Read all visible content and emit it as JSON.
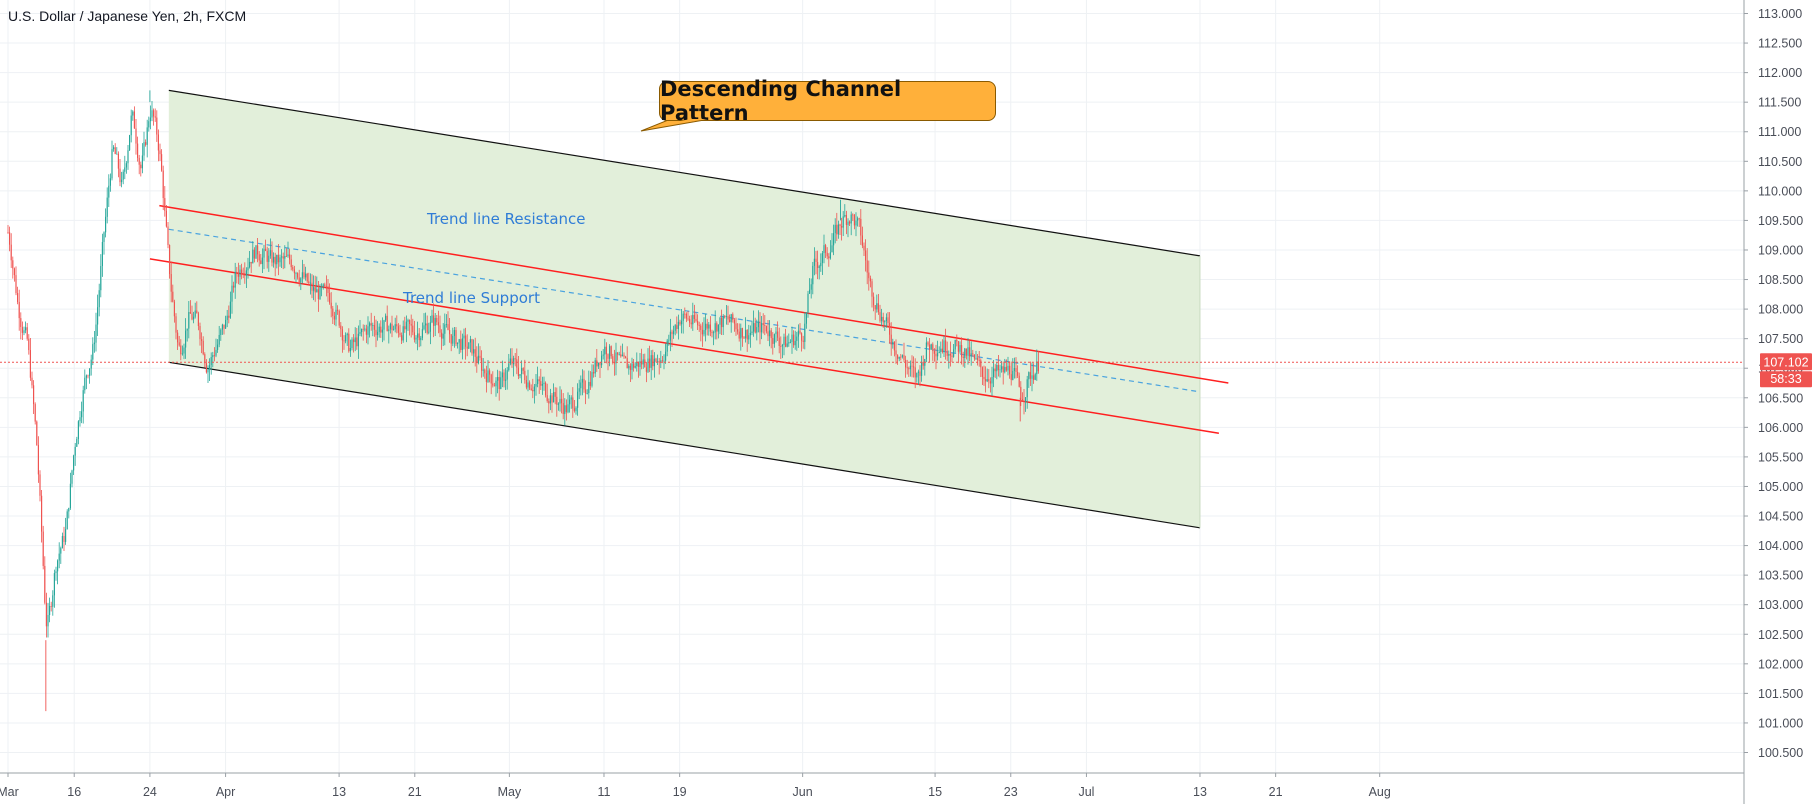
{
  "title": "U.S. Dollar / Japanese Yen, 2h, FXCM",
  "colors": {
    "up_candle": "#26a69a",
    "down_candle": "#ef5350",
    "channel_fill": "#e0eed8",
    "channel_edge": "#111111",
    "red_line": "#ff1f1f",
    "midline": "#4aa3df",
    "price_line": "#ef5350",
    "grid": "#eef1f4",
    "axis_text": "#4a4e58",
    "callout_bg": "#ffb03a"
  },
  "annotations": {
    "callout": "Descending Channel Pattern",
    "resistance": "Trend line Resistance",
    "support": "Trend line Support"
  },
  "price_label": {
    "price": "107.102",
    "countdown": "58:33"
  },
  "chart_data": {
    "type": "candlestick",
    "y_axis_side": "right",
    "ylim": [
      100.2,
      113.1
    ],
    "y_ticks": [
      "113.000",
      "112.500",
      "112.000",
      "111.500",
      "111.000",
      "110.500",
      "110.000",
      "109.500",
      "109.000",
      "108.500",
      "108.000",
      "107.500",
      "107.000",
      "106.500",
      "106.000",
      "105.500",
      "105.000",
      "104.500",
      "104.000",
      "103.500",
      "103.000",
      "102.500",
      "102.000",
      "101.500",
      "101.000",
      "100.500"
    ],
    "x_ticks": [
      {
        "label": "Mar",
        "date": "2020-03-09"
      },
      {
        "label": "16",
        "date": "2020-03-16"
      },
      {
        "label": "24",
        "date": "2020-03-24"
      },
      {
        "label": "Apr",
        "date": "2020-04-01"
      },
      {
        "label": "13",
        "date": "2020-04-13"
      },
      {
        "label": "21",
        "date": "2020-04-21"
      },
      {
        "label": "May",
        "date": "2020-05-01"
      },
      {
        "label": "11",
        "date": "2020-05-11"
      },
      {
        "label": "19",
        "date": "2020-05-19"
      },
      {
        "label": "Jun",
        "date": "2020-06-01"
      },
      {
        "label": "15",
        "date": "2020-06-15"
      },
      {
        "label": "23",
        "date": "2020-06-23"
      },
      {
        "label": "Jul",
        "date": "2020-07-01"
      },
      {
        "label": "13",
        "date": "2020-07-13"
      },
      {
        "label": "21",
        "date": "2020-07-21"
      },
      {
        "label": "Aug",
        "date": "2020-08-01"
      }
    ],
    "last_price": 107.102,
    "price_path": [
      {
        "date": "2020-03-09",
        "price": 109.3
      },
      {
        "date": "2020-03-10",
        "price": 108.0
      },
      {
        "date": "2020-03-11",
        "price": 107.4
      },
      {
        "date": "2020-03-12",
        "price": 105.6
      },
      {
        "date": "2020-03-13",
        "price": 102.4
      },
      {
        "date": "2020-03-14",
        "price": 103.8
      },
      {
        "date": "2020-03-15",
        "price": 104.2
      },
      {
        "date": "2020-03-16",
        "price": 105.8
      },
      {
        "date": "2020-03-17",
        "price": 106.8
      },
      {
        "date": "2020-03-18",
        "price": 107.4
      },
      {
        "date": "2020-03-19",
        "price": 109.2
      },
      {
        "date": "2020-03-20",
        "price": 110.8
      },
      {
        "date": "2020-03-21",
        "price": 110.0
      },
      {
        "date": "2020-03-22",
        "price": 111.4
      },
      {
        "date": "2020-03-23",
        "price": 110.3
      },
      {
        "date": "2020-03-24",
        "price": 111.5
      },
      {
        "date": "2020-03-25",
        "price": 110.6
      },
      {
        "date": "2020-03-26",
        "price": 108.5
      },
      {
        "date": "2020-03-27",
        "price": 107.2
      },
      {
        "date": "2020-03-28",
        "price": 107.9
      },
      {
        "date": "2020-03-29",
        "price": 107.8
      },
      {
        "date": "2020-03-30",
        "price": 107.0
      },
      {
        "date": "2020-04-01",
        "price": 107.8
      },
      {
        "date": "2020-04-02",
        "price": 108.6
      },
      {
        "date": "2020-04-04",
        "price": 109.0
      },
      {
        "date": "2020-04-06",
        "price": 108.8
      },
      {
        "date": "2020-04-08",
        "price": 108.8
      },
      {
        "date": "2020-04-10",
        "price": 108.3
      },
      {
        "date": "2020-04-12",
        "price": 108.2
      },
      {
        "date": "2020-04-14",
        "price": 107.3
      },
      {
        "date": "2020-04-16",
        "price": 107.7
      },
      {
        "date": "2020-04-18",
        "price": 107.7
      },
      {
        "date": "2020-04-21",
        "price": 107.6
      },
      {
        "date": "2020-04-23",
        "price": 107.8
      },
      {
        "date": "2020-04-25",
        "price": 107.5
      },
      {
        "date": "2020-04-27",
        "price": 107.3
      },
      {
        "date": "2020-04-28",
        "price": 107.0
      },
      {
        "date": "2020-04-30",
        "price": 106.7
      },
      {
        "date": "2020-05-01",
        "price": 107.1
      },
      {
        "date": "2020-05-03",
        "price": 106.8
      },
      {
        "date": "2020-05-05",
        "price": 106.6
      },
      {
        "date": "2020-05-07",
        "price": 106.3
      },
      {
        "date": "2020-05-09",
        "price": 106.7
      },
      {
        "date": "2020-05-11",
        "price": 107.4
      },
      {
        "date": "2020-05-13",
        "price": 107.0
      },
      {
        "date": "2020-05-15",
        "price": 107.1
      },
      {
        "date": "2020-05-17",
        "price": 107.2
      },
      {
        "date": "2020-05-19",
        "price": 107.9
      },
      {
        "date": "2020-05-21",
        "price": 107.7
      },
      {
        "date": "2020-05-24",
        "price": 107.8
      },
      {
        "date": "2020-05-26",
        "price": 107.6
      },
      {
        "date": "2020-05-28",
        "price": 107.7
      },
      {
        "date": "2020-05-30",
        "price": 107.4
      },
      {
        "date": "2020-06-01",
        "price": 107.6
      },
      {
        "date": "2020-06-02",
        "price": 108.7
      },
      {
        "date": "2020-06-04",
        "price": 109.1
      },
      {
        "date": "2020-06-05",
        "price": 109.5
      },
      {
        "date": "2020-06-06",
        "price": 109.6
      },
      {
        "date": "2020-06-07",
        "price": 109.3
      },
      {
        "date": "2020-06-08",
        "price": 108.4
      },
      {
        "date": "2020-06-10",
        "price": 107.6
      },
      {
        "date": "2020-06-12",
        "price": 107.0
      },
      {
        "date": "2020-06-13",
        "price": 106.8
      },
      {
        "date": "2020-06-14",
        "price": 107.4
      },
      {
        "date": "2020-06-16",
        "price": 107.4
      },
      {
        "date": "2020-06-18",
        "price": 107.3
      },
      {
        "date": "2020-06-20",
        "price": 106.9
      },
      {
        "date": "2020-06-22",
        "price": 106.9
      },
      {
        "date": "2020-06-23",
        "price": 107.0
      },
      {
        "date": "2020-06-24",
        "price": 106.5
      },
      {
        "date": "2020-06-25",
        "price": 106.9
      },
      {
        "date": "2020-06-26",
        "price": 107.1
      }
    ],
    "drawings": [
      {
        "kind": "channel",
        "name": "descending-channel",
        "upper": [
          {
            "date": "2020-03-26",
            "price": 111.7
          },
          {
            "date": "2020-07-13",
            "price": 108.9
          }
        ],
        "lower": [
          {
            "date": "2020-03-26",
            "price": 107.1
          },
          {
            "date": "2020-07-13",
            "price": 104.3
          }
        ]
      },
      {
        "kind": "trendline",
        "name": "resistance-line",
        "color": "red",
        "points": [
          {
            "date": "2020-03-25",
            "price": 109.75
          },
          {
            "date": "2020-07-16",
            "price": 106.75
          }
        ]
      },
      {
        "kind": "trendline",
        "name": "support-line",
        "color": "red",
        "points": [
          {
            "date": "2020-03-24",
            "price": 108.85
          },
          {
            "date": "2020-07-15",
            "price": 105.9
          }
        ]
      },
      {
        "kind": "dashed-midline",
        "name": "mid-line",
        "color": "blue",
        "points": [
          {
            "date": "2020-03-26",
            "price": 109.35
          },
          {
            "date": "2020-07-13",
            "price": 106.6
          }
        ]
      }
    ],
    "current_price_line": 107.102,
    "grid": true,
    "legend": "top-left"
  }
}
